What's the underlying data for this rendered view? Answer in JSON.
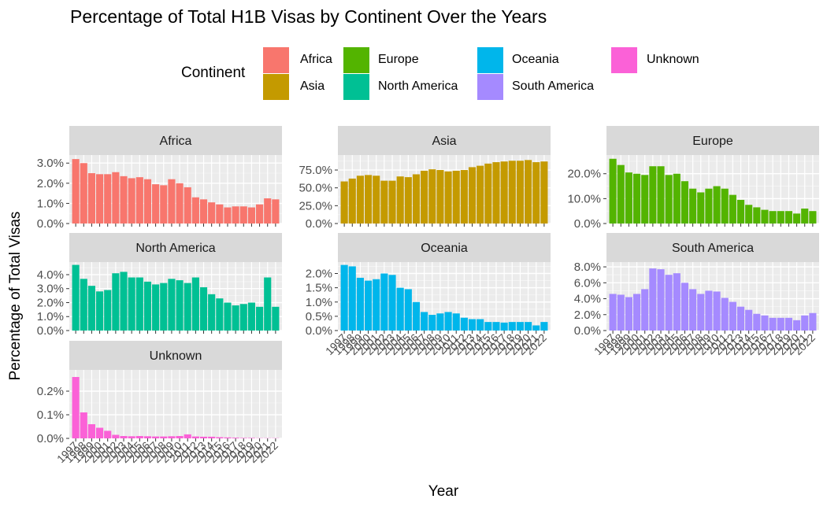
{
  "chart_data": {
    "type": "bar",
    "title": "Percentage of Total H1B Visas by Continent Over the Years",
    "xlabel": "Year",
    "ylabel": "Percentage of Total Visas",
    "legend": {
      "title": "Continent",
      "placement": "top",
      "entries": [
        {
          "name": "Africa",
          "color": "#F8766D"
        },
        {
          "name": "Asia",
          "color": "#C49A00"
        },
        {
          "name": "Europe",
          "color": "#53B400"
        },
        {
          "name": "North America",
          "color": "#00C094"
        },
        {
          "name": "Oceania",
          "color": "#00B6EB"
        },
        {
          "name": "South America",
          "color": "#A58AFF"
        },
        {
          "name": "Unknown",
          "color": "#FB61D7"
        }
      ]
    },
    "years": [
      "1997",
      "1998",
      "1999",
      "2000",
      "2001",
      "2002",
      "2003",
      "2004",
      "2005",
      "2006",
      "2007",
      "2008",
      "2009",
      "2010",
      "2011",
      "2012",
      "2013",
      "2014",
      "2015",
      "2016",
      "2017",
      "2018",
      "2019",
      "2020",
      "2021",
      "2022"
    ],
    "x_tick_labels": [
      "1997",
      "1998",
      "1999",
      "2000",
      "2001",
      "2002",
      "2003",
      "2004",
      "2005",
      "2006",
      "2007",
      "2008",
      "2009",
      "2010",
      "2011",
      "2012",
      "2013",
      "2014",
      "2015",
      "2016",
      "2017",
      "2018",
      "2019",
      "2020",
      "2021",
      "2022"
    ],
    "panels": [
      {
        "name": "Africa",
        "color": "#F8766D",
        "ylim": [
          0,
          3.4
        ],
        "yticks": [
          0,
          1,
          2,
          3
        ],
        "ytick_labels": [
          "0.0%",
          "1.0%",
          "2.0%",
          "3.0%"
        ],
        "values": [
          3.2,
          3.0,
          2.5,
          2.45,
          2.45,
          2.55,
          2.35,
          2.25,
          2.3,
          2.2,
          1.95,
          1.9,
          2.2,
          2.0,
          1.8,
          1.3,
          1.2,
          1.05,
          0.95,
          0.8,
          0.85,
          0.85,
          0.8,
          0.95,
          1.25,
          1.2
        ]
      },
      {
        "name": "Asia",
        "color": "#C49A00",
        "ylim": [
          0,
          96
        ],
        "yticks": [
          0,
          25,
          50,
          75
        ],
        "ytick_labels": [
          "0.0%",
          "25.0%",
          "50.0%",
          "75.0%"
        ],
        "values": [
          59,
          63,
          67,
          68,
          67,
          60,
          60,
          66,
          65,
          69,
          74,
          76,
          75,
          73,
          74,
          75,
          79,
          81,
          84,
          86,
          87,
          88,
          88,
          89,
          86,
          87
        ]
      },
      {
        "name": "Europe",
        "color": "#53B400",
        "ylim": [
          0,
          27.5
        ],
        "yticks": [
          0,
          10,
          20
        ],
        "ytick_labels": [
          "0.0%",
          "10.0%",
          "20.0%"
        ],
        "values": [
          26,
          23.5,
          20.5,
          20,
          19.5,
          23,
          23,
          19.5,
          20,
          17,
          14,
          12.5,
          14,
          15,
          14,
          11.5,
          9.5,
          7.5,
          6.5,
          5.5,
          5,
          5,
          5,
          4,
          6,
          5
        ]
      },
      {
        "name": "North America",
        "color": "#00C094",
        "ylim": [
          0,
          4.9
        ],
        "yticks": [
          0,
          1,
          2,
          3,
          4
        ],
        "ytick_labels": [
          "0.0%",
          "1.0%",
          "2.0%",
          "3.0%",
          "4.0%"
        ],
        "values": [
          4.7,
          3.7,
          3.2,
          2.8,
          2.9,
          4.1,
          4.2,
          3.8,
          3.8,
          3.5,
          3.3,
          3.4,
          3.7,
          3.6,
          3.4,
          3.8,
          3.1,
          2.6,
          2.3,
          2.0,
          1.8,
          1.9,
          2.0,
          1.7,
          3.8,
          1.7
        ]
      },
      {
        "name": "Oceania",
        "color": "#00B6EB",
        "ylim": [
          0,
          2.4
        ],
        "yticks": [
          0,
          0.5,
          1,
          1.5,
          2
        ],
        "ytick_labels": [
          "0.0%",
          "0.5%",
          "1.0%",
          "1.5%",
          "2.0%"
        ],
        "values": [
          2.3,
          2.25,
          1.85,
          1.75,
          1.8,
          2.0,
          1.95,
          1.5,
          1.45,
          1.0,
          0.65,
          0.55,
          0.6,
          0.65,
          0.6,
          0.45,
          0.4,
          0.4,
          0.3,
          0.3,
          0.28,
          0.3,
          0.3,
          0.3,
          0.18,
          0.3
        ]
      },
      {
        "name": "South America",
        "color": "#A58AFF",
        "ylim": [
          0,
          8.6
        ],
        "yticks": [
          0,
          2,
          4,
          6,
          8
        ],
        "ytick_labels": [
          "0.0%",
          "2.0%",
          "4.0%",
          "6.0%",
          "8.0%"
        ],
        "values": [
          4.6,
          4.5,
          4.2,
          4.6,
          5.2,
          7.8,
          7.7,
          7.0,
          7.2,
          6.0,
          5.2,
          4.6,
          5.0,
          4.9,
          4.1,
          3.6,
          3.0,
          2.6,
          2.1,
          1.9,
          1.6,
          1.6,
          1.6,
          1.3,
          1.9,
          2.2
        ]
      },
      {
        "name": "Unknown",
        "color": "#FB61D7",
        "ylim": [
          0,
          0.29
        ],
        "yticks": [
          0,
          0.1,
          0.2
        ],
        "ytick_labels": [
          "0.0%",
          "0.1%",
          "0.2%"
        ],
        "values": [
          0.26,
          0.11,
          0.06,
          0.045,
          0.032,
          0.015,
          0.01,
          0.009,
          0.01,
          0.009,
          0.008,
          0.008,
          0.009,
          0.01,
          0.017,
          0.008,
          0.007,
          0.007,
          0.005,
          0.004,
          0.003,
          0.002,
          0.002,
          0.001,
          0.001,
          0.001
        ]
      }
    ]
  }
}
